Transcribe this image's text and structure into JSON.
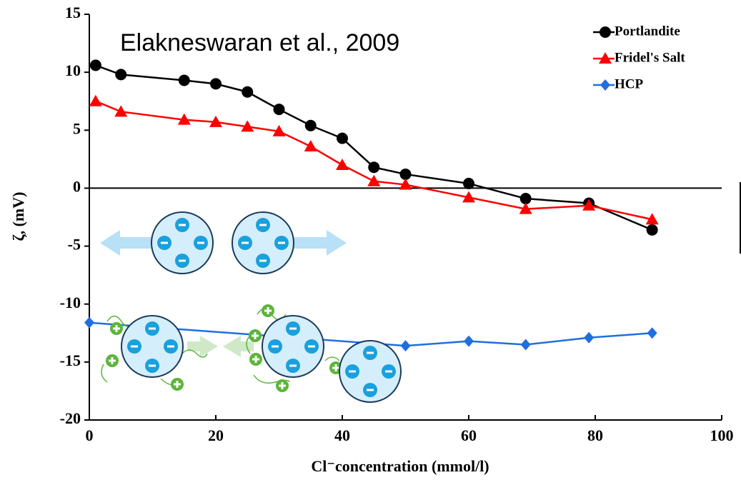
{
  "chart_data": {
    "type": "line",
    "annotation": "Elakneswaran et al., 2009",
    "x_label": "Cl⁻concentration (mmol/l)",
    "y_label": "ζ, (mV)",
    "xlim": [
      0,
      100
    ],
    "xticks": [
      0,
      20,
      40,
      60,
      80,
      100
    ],
    "ylim": [
      -20,
      15
    ],
    "yticks": [
      -20,
      -15,
      -10,
      -5,
      0,
      5,
      10,
      15
    ],
    "legend": "upper right",
    "series": [
      {
        "name": "Portlandite",
        "color": "#000000",
        "marker": "circle",
        "x": [
          1,
          5,
          15,
          20,
          25,
          30,
          35,
          40,
          45,
          50,
          60,
          69,
          79,
          89
        ],
        "values": [
          10.6,
          9.8,
          9.3,
          9.0,
          8.3,
          6.8,
          5.4,
          4.3,
          1.8,
          1.2,
          0.4,
          -0.9,
          -1.3,
          -3.6
        ]
      },
      {
        "name": "Fridel's Salt",
        "color": "#ff0000",
        "marker": "triangle",
        "x": [
          1,
          5,
          15,
          20,
          25,
          30,
          35,
          40,
          45,
          50,
          60,
          69,
          79,
          89
        ],
        "values": [
          7.5,
          6.6,
          5.9,
          5.7,
          5.3,
          4.9,
          3.6,
          2.0,
          0.6,
          0.3,
          -0.8,
          -1.8,
          -1.5,
          -2.7
        ]
      },
      {
        "name": "HCP",
        "color": "#1f6fe0",
        "marker": "diamond",
        "x": [
          0,
          50,
          60,
          69,
          79,
          89
        ],
        "values": [
          -11.6,
          -13.6,
          -13.2,
          -13.5,
          -12.9,
          -12.5
        ]
      }
    ]
  }
}
